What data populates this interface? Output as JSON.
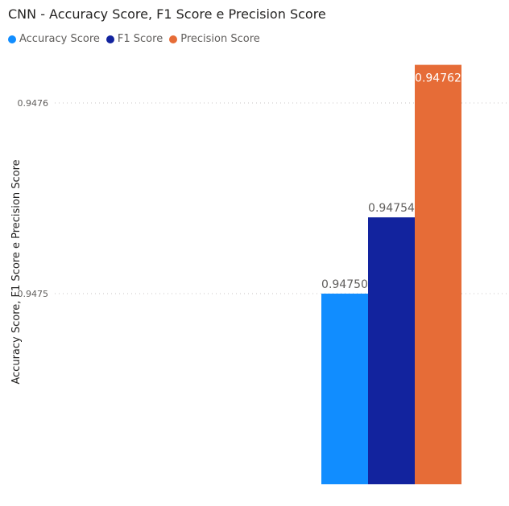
{
  "chart_data": {
    "type": "bar",
    "title": "CNN - Accuracy Score, F1 Score e Precision Score",
    "ylabel": "Accuracy Score, F1 Score e Precision Score",
    "xlabel": "",
    "ylim": [
      0.9474,
      0.94765
    ],
    "yticks": [
      0.9475,
      0.9476
    ],
    "ytick_labels": [
      "0.9475",
      "0.9476"
    ],
    "grid": true,
    "legend_position": "top-left",
    "categories": [
      ""
    ],
    "series": [
      {
        "name": "Accuracy Score",
        "values": [
          0.9475
        ],
        "label": "0.94750",
        "color": "#118DFF"
      },
      {
        "name": "F1 Score",
        "values": [
          0.94754
        ],
        "label": "0.94754",
        "color": "#12239E"
      },
      {
        "name": "Precision Score",
        "values": [
          0.94762
        ],
        "label": "0.94762",
        "color": "#E66C37"
      }
    ]
  }
}
